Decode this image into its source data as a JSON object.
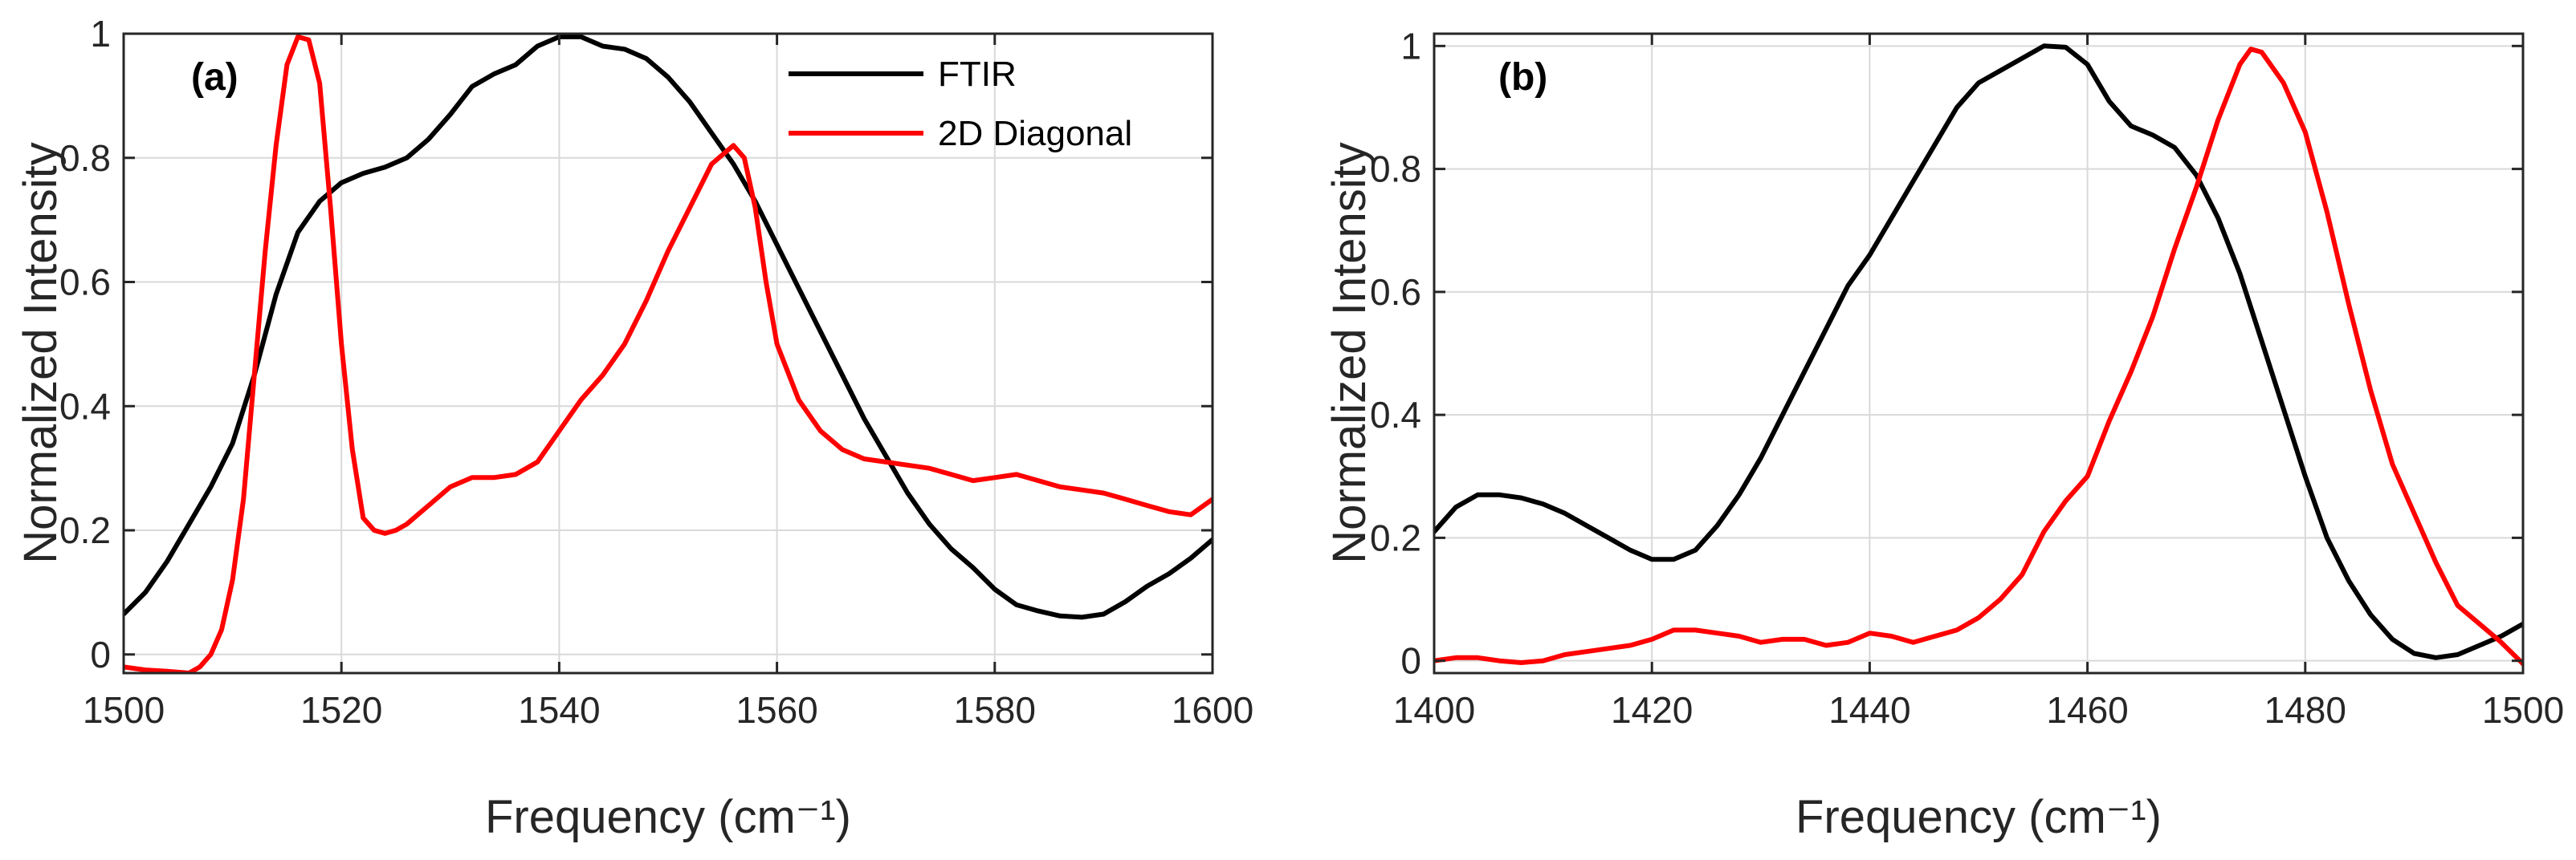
{
  "chart_data": [
    {
      "type": "line",
      "panel_label": "(a)",
      "xlabel": "Frequency (cm⁻¹)",
      "ylabel": "Normalized Intensity",
      "xlim": [
        1500,
        1600
      ],
      "ylim": [
        -0.03,
        1.0
      ],
      "xticks": [
        1500,
        1520,
        1540,
        1560,
        1580,
        1600
      ],
      "yticks": [
        0,
        0.2,
        0.4,
        0.6,
        0.8,
        1
      ],
      "grid": true,
      "legend": {
        "location": "top-right",
        "entries": [
          "FTIR",
          "2D Diagonal"
        ]
      },
      "series": [
        {
          "name": "FTIR",
          "color": "#000000",
          "x": [
            1500,
            1502,
            1504,
            1506,
            1508,
            1510,
            1512,
            1514,
            1516,
            1518,
            1520,
            1522,
            1524,
            1526,
            1528,
            1530,
            1532,
            1534,
            1536,
            1538,
            1540,
            1542,
            1544,
            1546,
            1548,
            1550,
            1552,
            1554,
            1556,
            1558,
            1560,
            1562,
            1564,
            1566,
            1568,
            1570,
            1572,
            1574,
            1576,
            1578,
            1580,
            1582,
            1584,
            1586,
            1588,
            1590,
            1592,
            1594,
            1596,
            1598,
            1600
          ],
          "y": [
            0.065,
            0.1,
            0.15,
            0.21,
            0.27,
            0.34,
            0.45,
            0.58,
            0.68,
            0.73,
            0.76,
            0.775,
            0.785,
            0.8,
            0.83,
            0.87,
            0.915,
            0.935,
            0.95,
            0.98,
            0.995,
            0.995,
            0.98,
            0.975,
            0.96,
            0.93,
            0.89,
            0.84,
            0.79,
            0.73,
            0.66,
            0.59,
            0.52,
            0.45,
            0.38,
            0.32,
            0.26,
            0.21,
            0.17,
            0.14,
            0.105,
            0.08,
            0.07,
            0.062,
            0.06,
            0.065,
            0.085,
            0.11,
            0.13,
            0.155,
            0.185
          ]
        },
        {
          "name": "2D Diagonal",
          "color": "#ff0000",
          "x": [
            1500,
            1502,
            1504,
            1506,
            1507,
            1508,
            1509,
            1510,
            1511,
            1512,
            1513,
            1514,
            1515,
            1516,
            1517,
            1518,
            1519,
            1520,
            1521,
            1522,
            1523,
            1524,
            1525,
            1526,
            1528,
            1530,
            1532,
            1534,
            1536,
            1538,
            1540,
            1542,
            1544,
            1546,
            1548,
            1550,
            1552,
            1554,
            1556,
            1557,
            1558,
            1559,
            1560,
            1562,
            1564,
            1566,
            1568,
            1570,
            1572,
            1574,
            1576,
            1578,
            1580,
            1582,
            1584,
            1586,
            1588,
            1590,
            1592,
            1594,
            1596,
            1598,
            1600
          ],
          "y": [
            -0.02,
            -0.025,
            -0.027,
            -0.03,
            -0.02,
            0.0,
            0.04,
            0.12,
            0.25,
            0.45,
            0.65,
            0.82,
            0.95,
            0.995,
            0.99,
            0.92,
            0.72,
            0.5,
            0.33,
            0.22,
            0.2,
            0.195,
            0.2,
            0.21,
            0.24,
            0.27,
            0.285,
            0.285,
            0.29,
            0.31,
            0.36,
            0.41,
            0.45,
            0.5,
            0.57,
            0.65,
            0.72,
            0.79,
            0.82,
            0.8,
            0.72,
            0.6,
            0.5,
            0.41,
            0.36,
            0.33,
            0.315,
            0.31,
            0.305,
            0.3,
            0.29,
            0.28,
            0.285,
            0.29,
            0.28,
            0.27,
            0.265,
            0.26,
            0.25,
            0.24,
            0.23,
            0.225,
            0.25
          ]
        }
      ]
    },
    {
      "type": "line",
      "panel_label": "(b)",
      "xlabel": "Frequency (cm⁻¹)",
      "ylabel": "Normalized Intensity",
      "xlim": [
        1400,
        1500
      ],
      "ylim": [
        -0.02,
        1.02
      ],
      "xticks": [
        1400,
        1420,
        1440,
        1460,
        1480,
        1500
      ],
      "yticks": [
        0,
        0.2,
        0.4,
        0.6,
        0.8,
        1
      ],
      "grid": true,
      "series": [
        {
          "name": "FTIR",
          "color": "#000000",
          "x": [
            1400,
            1402,
            1404,
            1406,
            1408,
            1410,
            1412,
            1414,
            1416,
            1418,
            1420,
            1422,
            1424,
            1426,
            1428,
            1430,
            1432,
            1434,
            1436,
            1438,
            1440,
            1442,
            1444,
            1446,
            1448,
            1450,
            1452,
            1454,
            1456,
            1458,
            1460,
            1462,
            1464,
            1466,
            1468,
            1470,
            1472,
            1474,
            1476,
            1478,
            1480,
            1482,
            1484,
            1486,
            1488,
            1490,
            1492,
            1494,
            1496,
            1498,
            1500
          ],
          "y": [
            0.21,
            0.25,
            0.27,
            0.27,
            0.265,
            0.255,
            0.24,
            0.22,
            0.2,
            0.18,
            0.165,
            0.165,
            0.18,
            0.22,
            0.27,
            0.33,
            0.4,
            0.47,
            0.54,
            0.61,
            0.66,
            0.72,
            0.78,
            0.84,
            0.9,
            0.94,
            0.96,
            0.98,
            1.0,
            0.998,
            0.97,
            0.91,
            0.87,
            0.855,
            0.835,
            0.79,
            0.72,
            0.63,
            0.52,
            0.41,
            0.3,
            0.2,
            0.13,
            0.075,
            0.035,
            0.012,
            0.005,
            0.01,
            0.025,
            0.04,
            0.06
          ]
        },
        {
          "name": "2D Diagonal",
          "color": "#ff0000",
          "x": [
            1400,
            1402,
            1404,
            1406,
            1408,
            1410,
            1412,
            1414,
            1416,
            1418,
            1420,
            1422,
            1424,
            1426,
            1428,
            1430,
            1432,
            1434,
            1436,
            1438,
            1440,
            1442,
            1444,
            1446,
            1448,
            1450,
            1452,
            1454,
            1456,
            1458,
            1460,
            1462,
            1464,
            1466,
            1468,
            1470,
            1472,
            1474,
            1475,
            1476,
            1478,
            1480,
            1482,
            1484,
            1486,
            1488,
            1490,
            1492,
            1494,
            1496,
            1498,
            1500
          ],
          "y": [
            0.0,
            0.005,
            0.005,
            0.0,
            -0.003,
            0.0,
            0.01,
            0.015,
            0.02,
            0.025,
            0.035,
            0.05,
            0.05,
            0.045,
            0.04,
            0.03,
            0.035,
            0.035,
            0.025,
            0.03,
            0.045,
            0.04,
            0.03,
            0.04,
            0.05,
            0.07,
            0.1,
            0.14,
            0.21,
            0.26,
            0.3,
            0.39,
            0.47,
            0.56,
            0.67,
            0.77,
            0.88,
            0.97,
            0.995,
            0.99,
            0.94,
            0.86,
            0.73,
            0.58,
            0.44,
            0.32,
            0.24,
            0.16,
            0.09,
            0.06,
            0.03,
            -0.005
          ]
        }
      ]
    }
  ]
}
